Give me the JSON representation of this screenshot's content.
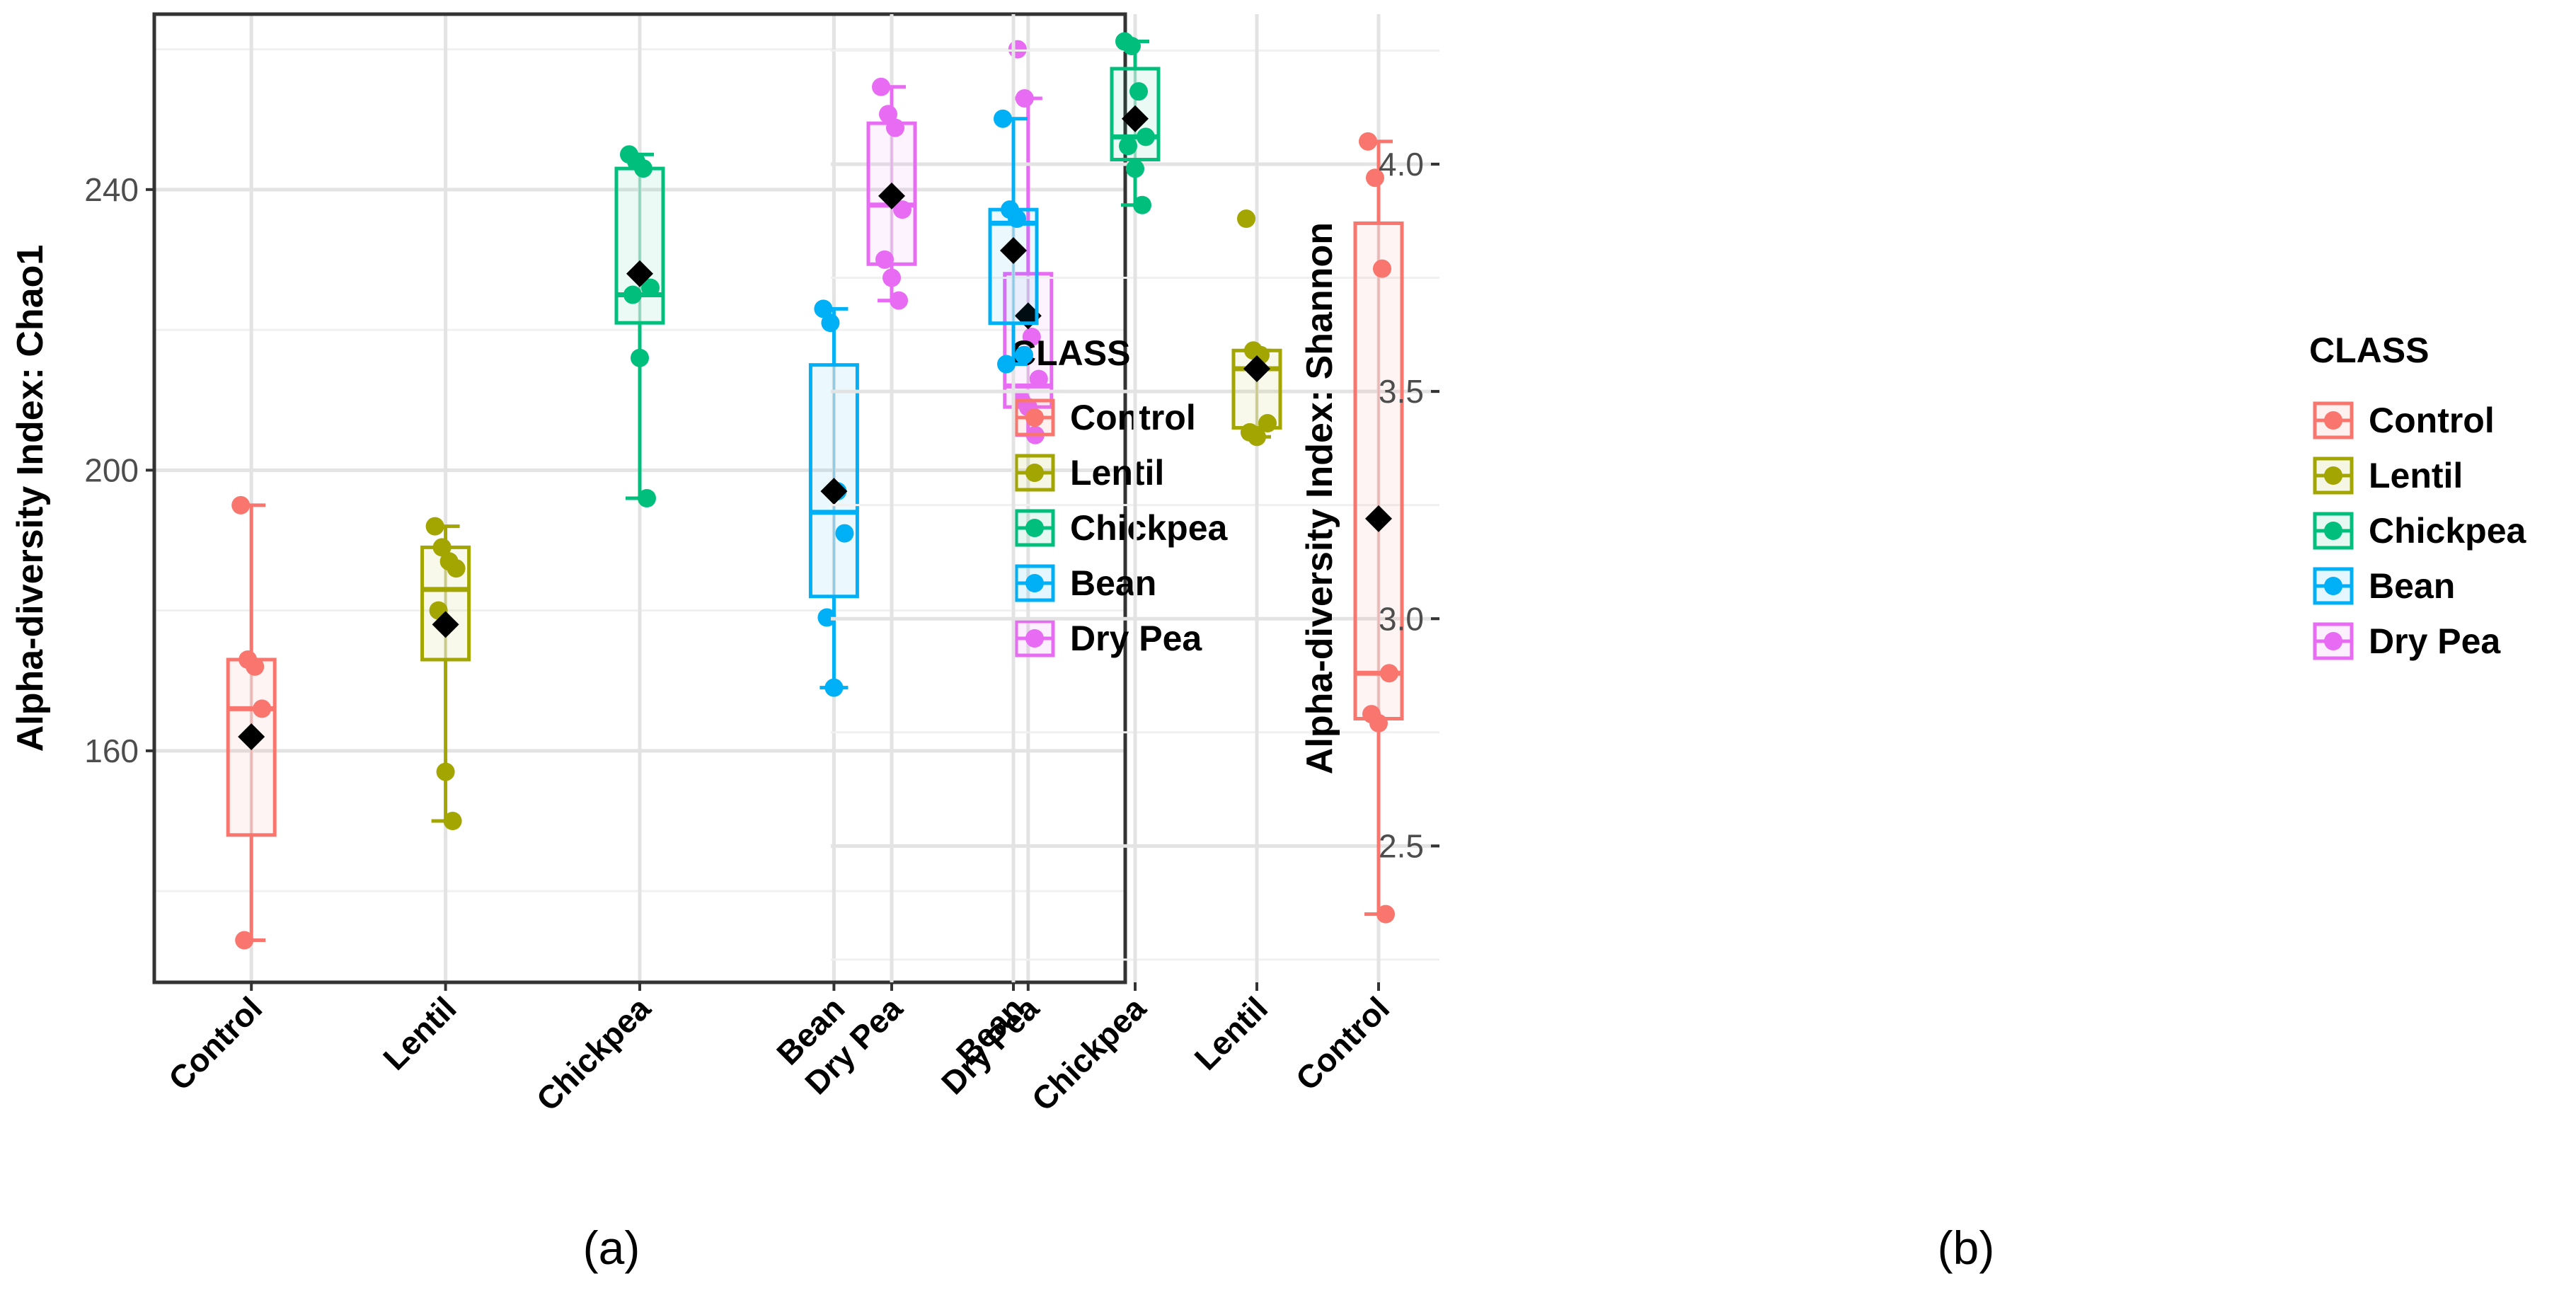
{
  "chart_data": [
    {
      "type": "boxplot",
      "panel_label": "(a)",
      "ylabel": "Alpha-diversity Index: Chao1",
      "xlabel": "",
      "ylim": [
        127,
        265
      ],
      "yticks": [
        160,
        200,
        240
      ],
      "minor_gridlines": [
        140,
        180,
        220,
        260
      ],
      "grid": true,
      "categories": [
        "Control",
        "Lentil",
        "Chickpea",
        "Bean",
        "Dry Pea"
      ],
      "legend": {
        "title": "CLASS",
        "position": "right",
        "entries": [
          "Control",
          "Lentil",
          "Chickpea",
          "Bean",
          "Dry Pea"
        ]
      },
      "groups": [
        {
          "name": "Control",
          "color": "#F8766D",
          "q1": 148,
          "median": 166,
          "q3": 173,
          "whisker_low": 133,
          "whisker_high": 195,
          "mean": 162,
          "points": [
            195,
            173,
            172,
            166,
            133
          ]
        },
        {
          "name": "Lentil",
          "color": "#A3A500",
          "q1": 173,
          "median": 183,
          "q3": 189,
          "whisker_low": 150,
          "whisker_high": 192,
          "mean": 178,
          "points": [
            192,
            189,
            187,
            186,
            180,
            157,
            150
          ]
        },
        {
          "name": "Chickpea",
          "color": "#00BF7D",
          "q1": 221,
          "median": 225,
          "q3": 243,
          "whisker_low": 196,
          "whisker_high": 245,
          "mean": 228,
          "points": [
            245,
            244,
            243,
            226,
            225,
            216,
            196
          ]
        },
        {
          "name": "Bean",
          "color": "#00B0F6",
          "q1": 182,
          "median": 194,
          "q3": 215,
          "whisker_low": 169,
          "whisker_high": 223,
          "mean": 197,
          "points": [
            223,
            221,
            197,
            191,
            179,
            169
          ]
        },
        {
          "name": "Dry Pea",
          "color": "#E76BF3",
          "q1": 209,
          "median": 212,
          "q3": 228,
          "whisker_low": 205,
          "whisker_high": 253,
          "mean": 222,
          "points": [
            260,
            253,
            219,
            213,
            210,
            209,
            205
          ]
        }
      ]
    },
    {
      "type": "boxplot",
      "panel_label": "(b)",
      "ylabel": "Alpha-diversity Index: Shannon",
      "xlabel": "",
      "ylim": [
        2.2,
        4.33
      ],
      "yticks": [
        2.5,
        3.0,
        3.5,
        4.0
      ],
      "ytick_labels": [
        "2.5",
        "3.0",
        "3.5",
        "4.0"
      ],
      "minor_gridlines": [
        2.25,
        2.75,
        3.25,
        3.75,
        4.25
      ],
      "grid": true,
      "categories": [
        "Control",
        "Lentil",
        "Chickpea",
        "Bean",
        "Dry Pea"
      ],
      "legend": {
        "title": "CLASS",
        "position": "right",
        "entries": [
          "Control",
          "Lentil",
          "Chickpea",
          "Bean",
          "Dry Pea"
        ]
      },
      "groups": [
        {
          "name": "Control",
          "color": "#F8766D",
          "q1": 2.78,
          "median": 2.88,
          "q3": 3.87,
          "whisker_low": 2.35,
          "whisker_high": 4.05,
          "mean": 3.22,
          "points": [
            4.05,
            3.97,
            3.77,
            2.88,
            2.79,
            2.77,
            2.35
          ]
        },
        {
          "name": "Lentil",
          "color": "#A3A500",
          "q1": 3.42,
          "median": 3.55,
          "q3": 3.59,
          "whisker_low": 3.4,
          "whisker_high": 3.59,
          "mean": 3.55,
          "points": [
            3.88,
            3.59,
            3.58,
            3.43,
            3.41,
            3.4
          ]
        },
        {
          "name": "Chickpea",
          "color": "#00BF7D",
          "q1": 4.01,
          "median": 4.06,
          "q3": 4.21,
          "whisker_low": 3.91,
          "whisker_high": 4.27,
          "mean": 4.1,
          "points": [
            4.27,
            4.26,
            4.16,
            4.06,
            4.04,
            3.99,
            3.91
          ]
        },
        {
          "name": "Bean",
          "color": "#00B0F6",
          "q1": 3.65,
          "median": 3.87,
          "q3": 3.9,
          "whisker_low": 3.56,
          "whisker_high": 4.1,
          "mean": 3.81,
          "points": [
            4.1,
            3.9,
            3.88,
            3.58,
            3.56
          ]
        },
        {
          "name": "Dry Pea",
          "color": "#E76BF3",
          "q1": 3.78,
          "median": 3.91,
          "q3": 4.09,
          "whisker_low": 3.7,
          "whisker_high": 4.17,
          "mean": 3.93,
          "points": [
            4.17,
            4.11,
            4.08,
            3.9,
            3.79,
            3.75,
            3.7
          ]
        }
      ]
    }
  ]
}
